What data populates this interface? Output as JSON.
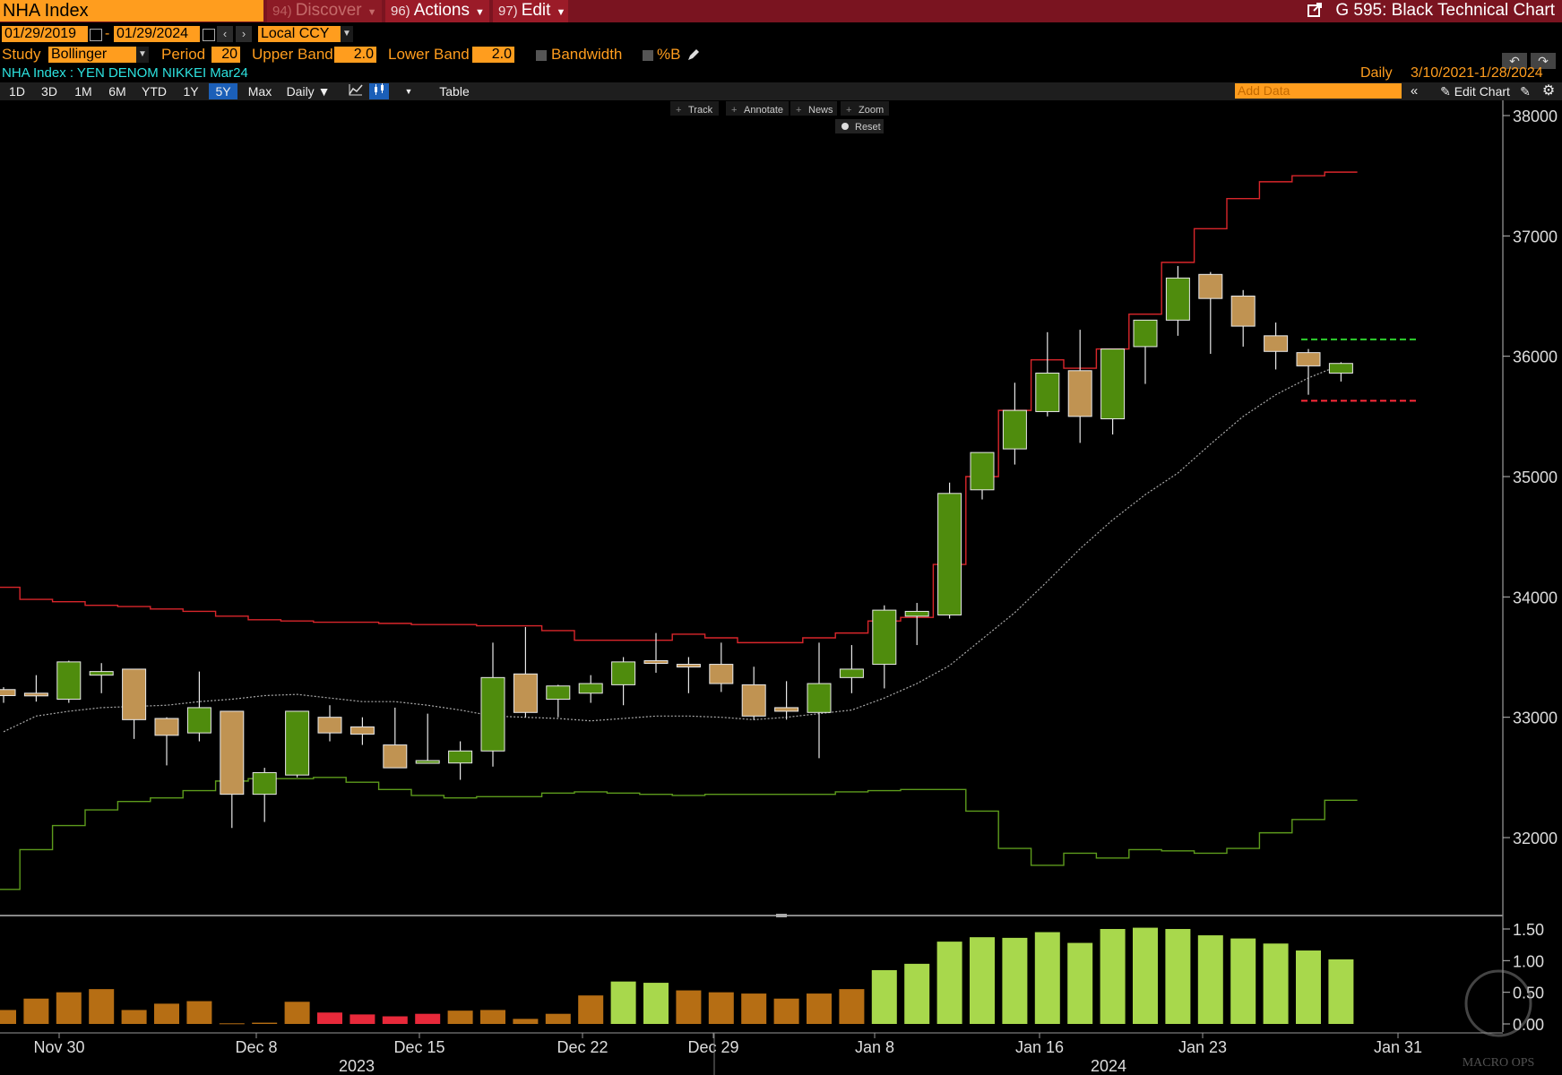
{
  "topbar": {
    "ticker": "NHA Index",
    "discover": {
      "num": "94)",
      "label": "Discover"
    },
    "actions": {
      "num": "96)",
      "label": "Actions"
    },
    "edit": {
      "num": "97)",
      "label": "Edit"
    },
    "title": "G 595: Black Technical Chart"
  },
  "controls": {
    "start_date": "01/29/2019",
    "date_sep": "-",
    "end_date": "01/29/2024",
    "currency": "Local CCY",
    "study_label": "Study",
    "study_value": "Bollinger",
    "period_label": "Period",
    "period_value": "20",
    "upper_label": "Upper Band",
    "upper_value": "2.0",
    "lower_label": "Lower Band",
    "lower_value": "2.0",
    "bandwidth_label": "Bandwidth",
    "pctb_label": "%B"
  },
  "security": {
    "description": "NHA Index : YEN DENOM NIKKEI  Mar24",
    "frequency": "Daily",
    "range": "3/10/2021-1/28/2024"
  },
  "timeframes": [
    "1D",
    "3D",
    "1M",
    "6M",
    "YTD",
    "1Y",
    "5Y",
    "Max"
  ],
  "active_timeframe": "5Y",
  "toolbar": {
    "period": "Daily",
    "table": "Table",
    "add_data_placeholder": "Add Data",
    "edit_chart": "Edit Chart"
  },
  "chart_tools": {
    "track": "Track",
    "annotate": "Annotate",
    "news": "News",
    "zoom": "Zoom",
    "reset": "Reset"
  },
  "watermark": "MACRO OPS",
  "colors": {
    "up": "#4f8c0d",
    "down": "#c09352",
    "upper_band": "#d9262b",
    "lower_band": "#5d9b1c",
    "accent": "#ff9d1e",
    "bar_hi": "#a8d84c",
    "bar_mid": "#b66e14",
    "bar_neg": "#e8293a"
  },
  "chart_data": {
    "type": "candlestick",
    "frequency": "Daily",
    "price_axis": {
      "ticks": [
        32000,
        33000,
        34000,
        35000,
        36000,
        37000,
        38000
      ]
    },
    "pctb_axis": {
      "ticks": [
        "1.50",
        "1.00",
        "0.50",
        "0.00"
      ]
    },
    "x_tick_labels": [
      "Nov 30",
      "Dec 8",
      "Dec 15",
      "Dec 22",
      "Dec 29",
      "Jan 8",
      "Jan 16",
      "Jan 23",
      "Jan 31"
    ],
    "year_labels": [
      "2023",
      "2024"
    ],
    "candles": [
      {
        "o": 33230,
        "h": 33250,
        "l": 33120,
        "c": 33180
      },
      {
        "o": 33200,
        "h": 33350,
        "l": 33130,
        "c": 33180
      },
      {
        "o": 33150,
        "h": 33470,
        "l": 33120,
        "c": 33460
      },
      {
        "o": 33350,
        "h": 33450,
        "l": 33200,
        "c": 33380
      },
      {
        "o": 33400,
        "h": 33400,
        "l": 32820,
        "c": 32980
      },
      {
        "o": 32990,
        "h": 33000,
        "l": 32600,
        "c": 32850
      },
      {
        "o": 32870,
        "h": 33380,
        "l": 32800,
        "c": 33080
      },
      {
        "o": 33050,
        "h": 33050,
        "l": 32080,
        "c": 32360
      },
      {
        "o": 32360,
        "h": 32580,
        "l": 32130,
        "c": 32540
      },
      {
        "o": 32520,
        "h": 33050,
        "l": 32500,
        "c": 33050
      },
      {
        "o": 33000,
        "h": 33100,
        "l": 32800,
        "c": 32870
      },
      {
        "o": 32920,
        "h": 33000,
        "l": 32770,
        "c": 32860
      },
      {
        "o": 32770,
        "h": 33080,
        "l": 32620,
        "c": 32580
      },
      {
        "o": 32620,
        "h": 33030,
        "l": 32620,
        "c": 32640
      },
      {
        "o": 32620,
        "h": 32800,
        "l": 32480,
        "c": 32720
      },
      {
        "o": 32720,
        "h": 33620,
        "l": 32590,
        "c": 33330
      },
      {
        "o": 33360,
        "h": 33750,
        "l": 33000,
        "c": 33040
      },
      {
        "o": 33150,
        "h": 33270,
        "l": 33000,
        "c": 33260
      },
      {
        "o": 33200,
        "h": 33350,
        "l": 33120,
        "c": 33280
      },
      {
        "o": 33270,
        "h": 33500,
        "l": 33100,
        "c": 33460
      },
      {
        "o": 33470,
        "h": 33700,
        "l": 33370,
        "c": 33450
      },
      {
        "o": 33440,
        "h": 33500,
        "l": 33200,
        "c": 33420
      },
      {
        "o": 33440,
        "h": 33620,
        "l": 33210,
        "c": 33280
      },
      {
        "o": 33270,
        "h": 33420,
        "l": 32980,
        "c": 33010
      },
      {
        "o": 33080,
        "h": 33300,
        "l": 32980,
        "c": 33050
      },
      {
        "o": 33040,
        "h": 33620,
        "l": 32660,
        "c": 33280
      },
      {
        "o": 33330,
        "h": 33600,
        "l": 33200,
        "c": 33400
      },
      {
        "o": 33440,
        "h": 33930,
        "l": 33240,
        "c": 33890
      },
      {
        "o": 33840,
        "h": 33950,
        "l": 33600,
        "c": 33880
      },
      {
        "o": 33850,
        "h": 34950,
        "l": 33820,
        "c": 34860
      },
      {
        "o": 34890,
        "h": 35200,
        "l": 34810,
        "c": 35200
      },
      {
        "o": 35230,
        "h": 35780,
        "l": 35100,
        "c": 35550
      },
      {
        "o": 35540,
        "h": 36200,
        "l": 35500,
        "c": 35860
      },
      {
        "o": 35880,
        "h": 36220,
        "l": 35280,
        "c": 35500
      },
      {
        "o": 35480,
        "h": 36060,
        "l": 35350,
        "c": 36060
      },
      {
        "o": 36080,
        "h": 36300,
        "l": 35770,
        "c": 36300
      },
      {
        "o": 36300,
        "h": 36750,
        "l": 36170,
        "c": 36650
      },
      {
        "o": 36680,
        "h": 36700,
        "l": 36020,
        "c": 36480
      },
      {
        "o": 36500,
        "h": 36550,
        "l": 36080,
        "c": 36250
      },
      {
        "o": 36170,
        "h": 36280,
        "l": 35890,
        "c": 36040
      },
      {
        "o": 36030,
        "h": 36060,
        "l": 35680,
        "c": 35920
      },
      {
        "o": 35860,
        "h": 35950,
        "l": 35790,
        "c": 35940
      }
    ],
    "upper_band": [
      34080,
      33980,
      33960,
      33930,
      33920,
      33900,
      33880,
      33840,
      33810,
      33800,
      33790,
      33790,
      33780,
      33770,
      33770,
      33760,
      33760,
      33720,
      33640,
      33640,
      33640,
      33690,
      33660,
      33620,
      33620,
      33660,
      33700,
      33800,
      33830,
      34270,
      35000,
      35550,
      35970,
      35900,
      36060,
      36350,
      36780,
      37060,
      37310,
      37450,
      37500,
      37530
    ],
    "middle_band": [
      32880,
      33010,
      33050,
      33080,
      33090,
      33100,
      33130,
      33150,
      33180,
      33190,
      33160,
      33130,
      33130,
      33100,
      33060,
      33010,
      33000,
      32990,
      32970,
      32990,
      33010,
      33010,
      33000,
      32980,
      33000,
      33030,
      33060,
      33160,
      33280,
      33430,
      33650,
      33870,
      34130,
      34400,
      34640,
      34850,
      35030,
      35270,
      35500,
      35680,
      35820,
      35930
    ],
    "lower_band": [
      31570,
      31900,
      32100,
      32230,
      32300,
      32330,
      32390,
      32470,
      32490,
      32490,
      32500,
      32460,
      32400,
      32350,
      32330,
      32340,
      32340,
      32370,
      32380,
      32370,
      32360,
      32350,
      32360,
      32360,
      32360,
      32360,
      32380,
      32390,
      32400,
      32400,
      32220,
      31910,
      31770,
      31870,
      31830,
      31900,
      31890,
      31870,
      31910,
      32040,
      32150,
      32310
    ],
    "pctb": [
      0.22,
      0.4,
      0.5,
      0.55,
      0.22,
      0.32,
      0.36,
      0.01,
      0.02,
      0.35,
      0.18,
      0.15,
      0.12,
      0.16,
      0.21,
      0.22,
      0.08,
      0.16,
      0.45,
      0.67,
      0.65,
      0.53,
      0.5,
      0.48,
      0.4,
      0.48,
      0.55,
      0.85,
      0.95,
      1.3,
      1.37,
      1.36,
      1.45,
      1.28,
      1.5,
      1.52,
      1.5,
      1.4,
      1.35,
      1.27,
      1.16,
      1.02
    ],
    "reference_lines": [
      {
        "value": 36140,
        "color": "green",
        "style": "dashed"
      },
      {
        "value": 35630,
        "color": "red",
        "style": "dashed"
      }
    ]
  }
}
